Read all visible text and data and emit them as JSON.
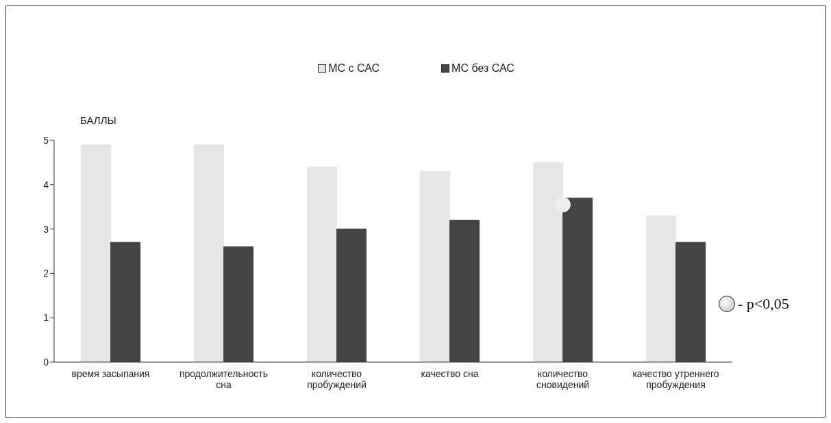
{
  "chart_data": {
    "type": "bar",
    "ylabel": "БАЛЛЫ",
    "categories": [
      "время засыпания",
      "продолжительность сна",
      "количество пробуждений",
      "качество сна",
      "количество сновидений",
      "качество утреннего пробуждения"
    ],
    "series": [
      {
        "name": "МС с САС",
        "color": "#e6e6e6",
        "values": [
          4.9,
          4.9,
          4.4,
          4.3,
          4.5,
          3.3
        ]
      },
      {
        "name": "МС без САС",
        "color": "#444444",
        "values": [
          2.7,
          2.6,
          3.0,
          3.2,
          3.7,
          2.7
        ]
      },
      {
        "type": "scatter",
        "marker": "circle",
        "color": "#eeeeee",
        "values": [
          null,
          null,
          null,
          null,
          3.55,
          null
        ]
      }
    ],
    "ylim": [
      0,
      5
    ],
    "yticks": [
      0,
      1,
      2,
      3,
      4,
      5
    ],
    "grid": false,
    "legend": "top",
    "annotations": [
      "- p<0,05"
    ]
  }
}
